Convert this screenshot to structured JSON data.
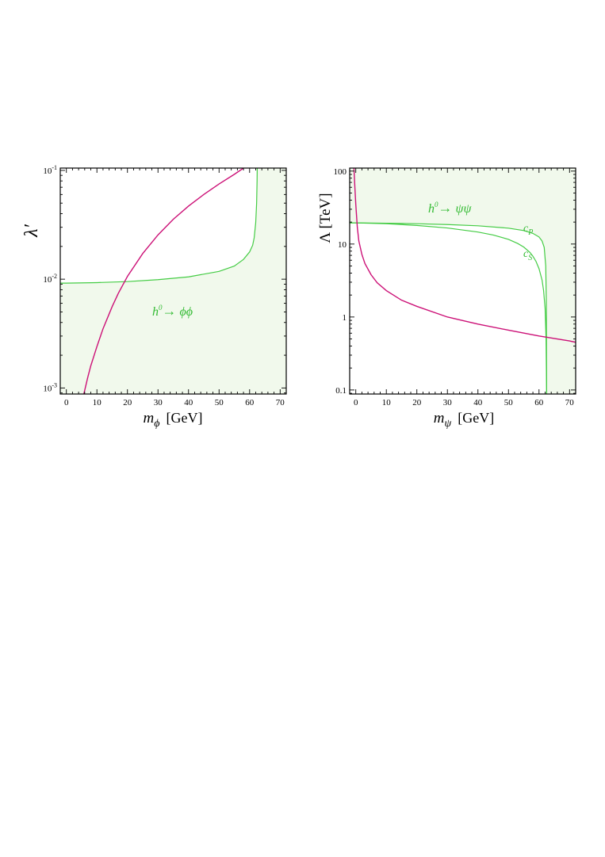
{
  "colors": {
    "region_fill": "#f1f9ec",
    "green_curve": "#44cc44",
    "magenta_curve": "#cc1177",
    "label_green": "#33bb33",
    "frame": "#000000"
  },
  "chart_data": [
    {
      "type": "line",
      "panel": "left",
      "title": "",
      "xlabel": "m_ϕ [GeV]",
      "xlabel_main": "m",
      "xlabel_sub": "ϕ",
      "xlabel_unit": "[GeV]",
      "ylabel": "λ′",
      "xlim": [
        -2,
        72
      ],
      "ylim": [
        0.00088,
        0.105
      ],
      "yscale": "log",
      "grid": false,
      "x_ticks": [
        0,
        10,
        20,
        30,
        40,
        50,
        60,
        70
      ],
      "x_tick_labels": [
        "0",
        "10",
        "20",
        "30",
        "40",
        "50",
        "60",
        "70"
      ],
      "y_ticks": [
        {
          "value": 0.1,
          "base": "10",
          "exp": "-1"
        },
        {
          "value": 0.01,
          "base": "10",
          "exp": "-2"
        },
        {
          "value": 0.001,
          "base": "10",
          "exp": "-3"
        }
      ],
      "annotations": [
        {
          "text": "h⁰→ ϕϕ",
          "x": 38,
          "y": 0.0038
        }
      ],
      "series": [
        {
          "color": "#44cc44",
          "fill_region": "below",
          "x": [
            -2,
            0,
            10,
            20,
            30,
            40,
            50,
            55,
            58,
            60,
            61,
            61.5,
            62,
            62.3,
            62.45,
            62.5
          ],
          "y": [
            0.0092,
            0.0092,
            0.0093,
            0.0095,
            0.0099,
            0.0105,
            0.0118,
            0.0132,
            0.0152,
            0.0178,
            0.0205,
            0.024,
            0.033,
            0.05,
            0.08,
            0.105
          ]
        },
        {
          "color": "#cc1177",
          "fill_region": "none",
          "x": [
            5.7,
            6,
            7,
            8,
            10,
            12,
            15,
            17,
            20,
            25,
            30,
            35,
            40,
            45,
            50,
            55,
            58
          ],
          "y": [
            0.00088,
            0.00095,
            0.00125,
            0.0016,
            0.0024,
            0.0035,
            0.0056,
            0.0074,
            0.0106,
            0.0172,
            0.0255,
            0.0355,
            0.047,
            0.06,
            0.075,
            0.092,
            0.105
          ]
        }
      ]
    },
    {
      "type": "line",
      "panel": "right",
      "title": "",
      "xlabel": "m_ψ [GeV]",
      "xlabel_main": "m",
      "xlabel_sub": "ψ",
      "xlabel_unit": "[GeV]",
      "ylabel": "Λ [TeV]",
      "xlim": [
        -2,
        72
      ],
      "ylim": [
        0.088,
        110
      ],
      "yscale": "log",
      "grid": false,
      "x_ticks": [
        0,
        10,
        20,
        30,
        40,
        50,
        60,
        70
      ],
      "x_tick_labels": [
        "0",
        "10",
        "20",
        "30",
        "40",
        "50",
        "60",
        "70"
      ],
      "y_ticks": [
        {
          "value": 100,
          "label": "100"
        },
        {
          "value": 10,
          "label": "10"
        },
        {
          "value": 1,
          "label": "1"
        },
        {
          "value": 0.1,
          "label": "0.1"
        }
      ],
      "annotations": [
        {
          "text": "h⁰→ ψψ",
          "x": 21,
          "y": 45
        },
        {
          "text": "c",
          "sub": "P",
          "x": 57.5,
          "y": 17
        },
        {
          "text": "c",
          "sub": "S",
          "x": 57.5,
          "y": 8
        }
      ],
      "series": [
        {
          "name": "c_P",
          "color": "#44cc44",
          "fill_region": "above",
          "x": [
            -2,
            0,
            10,
            20,
            30,
            40,
            50,
            55,
            58,
            60,
            61,
            61.7,
            62.2,
            62.4,
            62.5
          ],
          "y": [
            19.5,
            19.5,
            19.3,
            19,
            18.5,
            17.8,
            16.5,
            15.3,
            14,
            12.5,
            11,
            9,
            5,
            1.5,
            0.088
          ]
        },
        {
          "name": "c_S",
          "color": "#44cc44",
          "fill_region": "above",
          "x": [
            -2,
            0,
            10,
            20,
            30,
            40,
            45,
            50,
            53,
            55,
            57,
            58,
            59,
            60,
            61,
            61.5,
            62,
            62.3,
            62.5
          ],
          "y": [
            19.5,
            19.5,
            19,
            18,
            16.6,
            14.6,
            13.3,
            11.6,
            10.2,
            9.1,
            7.7,
            6.8,
            5.8,
            4.6,
            3.2,
            2.3,
            1.3,
            0.5,
            0.088
          ]
        },
        {
          "color": "#cc1177",
          "fill_region": "none",
          "x": [
            -0.6,
            -0.3,
            0,
            0.5,
            1,
            2,
            3,
            5,
            7,
            10,
            15,
            20,
            30,
            40,
            50,
            60,
            70,
            72
          ],
          "y": [
            110,
            60,
            35,
            17,
            11,
            7.2,
            5.4,
            3.8,
            2.95,
            2.3,
            1.7,
            1.4,
            1.0,
            0.8,
            0.66,
            0.55,
            0.47,
            0.45
          ]
        }
      ]
    }
  ]
}
